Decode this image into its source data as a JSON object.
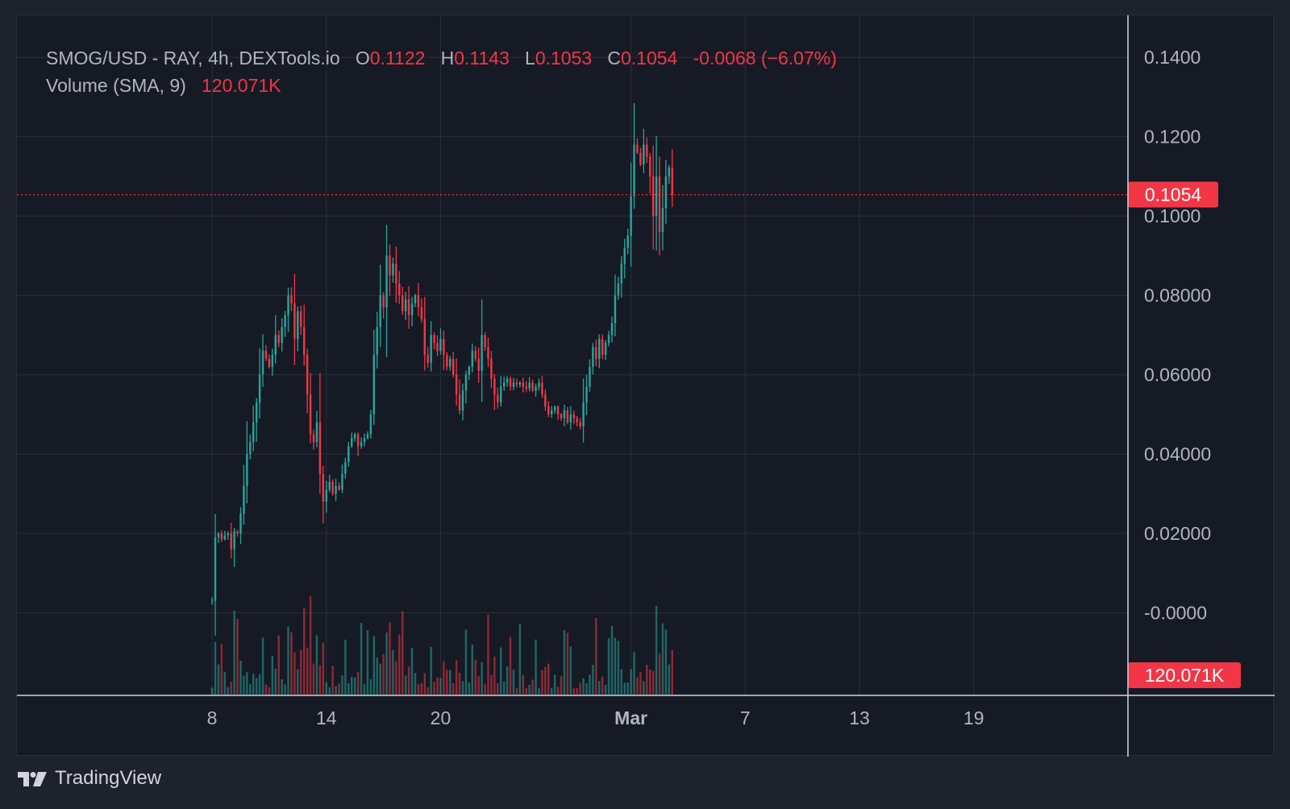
{
  "legend": {
    "symbol": "SMOG/USD - RAY, 4h, DEXTools.io",
    "o_label": "O",
    "o_value": "0.1122",
    "h_label": "H",
    "h_value": "0.1143",
    "l_label": "L",
    "l_value": "0.1053",
    "c_label": "C",
    "c_value": "0.1054",
    "change": "-0.0068 (−6.07%)",
    "volume_label": "Volume (SMA, 9)",
    "volume_value": "120.071K"
  },
  "brand": {
    "name": "TradingView",
    "icon": "tradingview-logo-icon"
  },
  "colors": {
    "up": "#26a69a",
    "down": "#f23645",
    "background": "#161a25",
    "grid": "#2a2e39",
    "text": "#b2b5be"
  },
  "chart_data": {
    "type": "candlestick",
    "y_axis": {
      "ticks": [
        0.14,
        0.12,
        0.1,
        0.08,
        0.06,
        0.04,
        0.02,
        0.0
      ],
      "tick_labels": [
        "0.1400",
        "0.1200",
        "0.1000",
        "0.08000",
        "0.06000",
        "0.04000",
        "0.02000",
        "-0.0000"
      ],
      "ylim": [
        -0.0115,
        0.1435
      ]
    },
    "x_axis": {
      "tick_labels": [
        "8",
        "14",
        "20",
        "Mar",
        "7",
        "13",
        "19"
      ],
      "tick_days": [
        8,
        14,
        20,
        30,
        36,
        42,
        48
      ],
      "xlim_days": [
        -2.25,
        56.1
      ]
    },
    "last_price": {
      "value": 0.1054,
      "label": "0.1054"
    },
    "volume_badge": "120.071K",
    "grid": true,
    "candles_4h": {
      "start_day": 8,
      "candles_per_day": 6,
      "close": [
        0.003,
        0.019,
        0.02,
        0.0185,
        0.0195,
        0.02,
        0.016,
        0.0205,
        0.02,
        0.025,
        0.032,
        0.04,
        0.043,
        0.048,
        0.053,
        0.06,
        0.066,
        0.064,
        0.062,
        0.065,
        0.07,
        0.068,
        0.072,
        0.075,
        0.08,
        0.078,
        0.069,
        0.076,
        0.072,
        0.065,
        0.055,
        0.045,
        0.043,
        0.048,
        0.035,
        0.028,
        0.031,
        0.033,
        0.03,
        0.032,
        0.031,
        0.035,
        0.038,
        0.042,
        0.044,
        0.045,
        0.042,
        0.043,
        0.044,
        0.045,
        0.05,
        0.065,
        0.072,
        0.08,
        0.077,
        0.09,
        0.085,
        0.088,
        0.083,
        0.08,
        0.076,
        0.079,
        0.075,
        0.078,
        0.08,
        0.077,
        0.074,
        0.065,
        0.063,
        0.07,
        0.068,
        0.066,
        0.069,
        0.065,
        0.062,
        0.064,
        0.06,
        0.055,
        0.051,
        0.056,
        0.06,
        0.062,
        0.066,
        0.064,
        0.061,
        0.07,
        0.067,
        0.064,
        0.059,
        0.055,
        0.053,
        0.057,
        0.058,
        0.059,
        0.057,
        0.058,
        0.0575,
        0.058,
        0.057,
        0.0565,
        0.058,
        0.056,
        0.057,
        0.058,
        0.055,
        0.052,
        0.05,
        0.051,
        0.052,
        0.05,
        0.049,
        0.051,
        0.048,
        0.05,
        0.049,
        0.048,
        0.047,
        0.053,
        0.057,
        0.062,
        0.067,
        0.064,
        0.069,
        0.065,
        0.068,
        0.07,
        0.073,
        0.08,
        0.083,
        0.088,
        0.092,
        0.095,
        0.105,
        0.118,
        0.116,
        0.113,
        0.118,
        0.115,
        0.11,
        0.1,
        0.11,
        0.096,
        0.102,
        0.11,
        0.1122,
        0.1054
      ]
    },
    "volume_bars": "one bar per candle; bars share the candle colour"
  }
}
